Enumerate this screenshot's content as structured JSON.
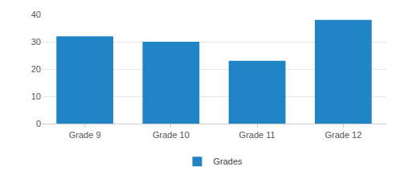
{
  "chart_data": {
    "type": "bar",
    "categories": [
      "Grade 9",
      "Grade 10",
      "Grade 11",
      "Grade 12"
    ],
    "series": [
      {
        "name": "Grades",
        "color": "#2185c5",
        "values": [
          32,
          30,
          23,
          38
        ]
      }
    ],
    "ylim": [
      0,
      40
    ],
    "yticks": [
      0,
      10,
      20,
      30,
      40
    ],
    "grid": true,
    "legend": "bottom"
  }
}
